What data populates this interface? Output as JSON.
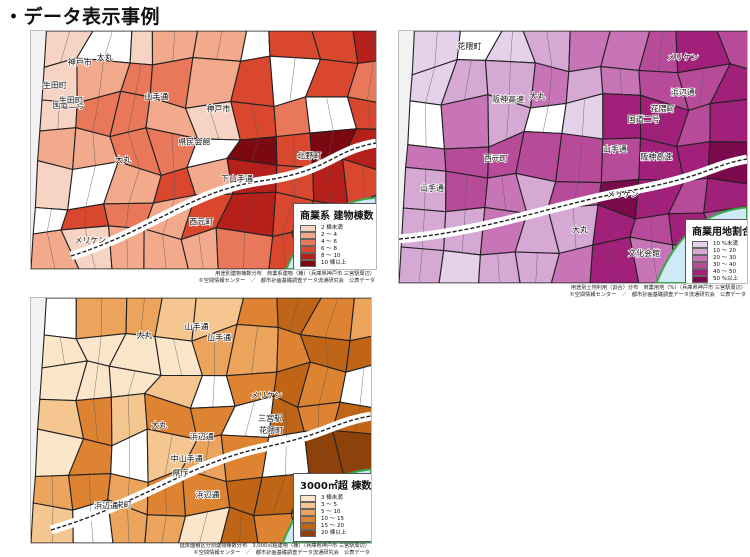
{
  "heading": "・データ表示事例",
  "maps": [
    {
      "legend": {
        "title": "商業系 建物棟数",
        "items": [
          {
            "label": "2 棟未満",
            "color": "#f6d3c2"
          },
          {
            "label": "2 ～ 4",
            "color": "#f2a98c"
          },
          {
            "label": "4 ～ 6",
            "color": "#e9785a"
          },
          {
            "label": "6 ～ 8",
            "color": "#d9482e"
          },
          {
            "label": "8 ～ 10",
            "color": "#b5201b"
          },
          {
            "label": "10 棟以上",
            "color": "#7c0811"
          }
        ]
      },
      "caption_line1": "用途別建物棟数分布　商業系建物（棟）（兵庫県神戸市 三宮駅周辺）",
      "caption_line2": "©空間情報センター　／　都市計画基礎調査データ流通研究会　公表データ"
    },
    {
      "legend": {
        "title": "商業用地割合",
        "items": [
          {
            "label": "10 %未満",
            "color": "#e6d1ea"
          },
          {
            "label": "10 ～ 20",
            "color": "#d6a8d4"
          },
          {
            "label": "20 ～ 30",
            "color": "#c775b7"
          },
          {
            "label": "30 ～ 40",
            "color": "#b84a9a"
          },
          {
            "label": "40 ～ 50",
            "color": "#a1207a"
          },
          {
            "label": "50 %以上",
            "color": "#7a0a4c"
          }
        ]
      },
      "caption_line1": "用途別土地利用（割合）分布　商業用地（%）（兵庫県神戸市 三宮駅周辺）",
      "caption_line2": "©空間情報センター　／　都市計画基礎調査データ流通研究会　公表データ"
    },
    {
      "legend": {
        "title": "3000㎡超 棟数",
        "items": [
          {
            "label": "3 棟未満",
            "color": "#fbe6c9"
          },
          {
            "label": "3 ～ 5",
            "color": "#f5c690"
          },
          {
            "label": "5 ～ 10",
            "color": "#eca35c"
          },
          {
            "label": "10 ～ 15",
            "color": "#dd8331"
          },
          {
            "label": "15 ～ 20",
            "color": "#c06415"
          },
          {
            "label": "20 棟以上",
            "color": "#8e420a"
          }
        ]
      },
      "caption_line1": "延床面積区分別建物棟数分布　3,000㎡超建物（棟）（兵庫県神戸市 三宮駅周辺）",
      "caption_line2": "©空間情報センター　／　都市計画基礎調査データ流通研究会　公表データ"
    }
  ],
  "place_labels": [
    "神戸市",
    "山手通",
    "下山手通",
    "中山手通",
    "山本通",
    "北野町",
    "生田町",
    "旧ハッサ通",
    "県庁",
    "県民会館",
    "文化会館",
    "元町駅",
    "三宮駅",
    "花隈町",
    "元町通",
    "西元町",
    "栄町",
    "浜辺通",
    "メリケン",
    "国道二号",
    "阪神高速",
    "大丸"
  ]
}
